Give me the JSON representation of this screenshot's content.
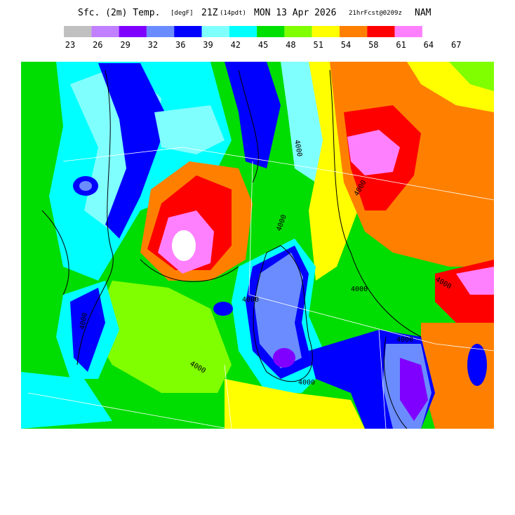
{
  "header": {
    "title": "Sfc. (2m) Temp.",
    "units": "[degF]",
    "time": "21Z",
    "local_time": "(14pdt)",
    "date": "MON 13 Apr 2026",
    "forecast": "21hrFcst@0209z",
    "model": "NAM"
  },
  "legend": {
    "colors": [
      "#c0c0c0",
      "#c080ff",
      "#8000ff",
      "#6a8cff",
      "#0000ff",
      "#80ffff",
      "#00ffff",
      "#00e000",
      "#80ff00",
      "#ffff00",
      "#ff8000",
      "#ff0000",
      "#ff80ff"
    ],
    "labels": [
      23,
      26,
      29,
      32,
      36,
      39,
      42,
      45,
      48,
      51,
      54,
      58,
      61,
      64,
      67
    ]
  },
  "map": {
    "contour_labels": [
      "4000",
      "4000",
      "4000",
      "4000",
      "4000",
      "4000",
      "4000",
      "4000",
      "4000",
      "4000"
    ]
  }
}
